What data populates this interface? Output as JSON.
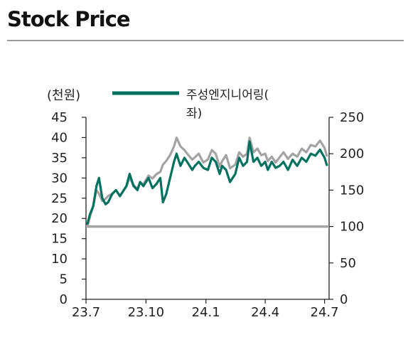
{
  "header": {
    "title": "Stock Price"
  },
  "chart_data": {
    "type": "line",
    "title": "Stock Price",
    "left_axis_label": "(천원)",
    "x_ticks": [
      "23.7",
      "23.10",
      "24.1",
      "24.4",
      "24.7"
    ],
    "y_left": {
      "min": 0,
      "max": 45,
      "ticks": [
        "0",
        "5",
        "10",
        "15",
        "20",
        "25",
        "30",
        "35",
        "40",
        "45"
      ]
    },
    "y_right": {
      "min": 0,
      "max": 250,
      "ticks": [
        "0",
        "50",
        "100",
        "150",
        "200",
        "250"
      ]
    },
    "legend": {
      "line1": "주성엔지니어링(",
      "line2": "좌)"
    },
    "grid": false,
    "colors": {
      "price": "#00715f",
      "relative": "#a3a3a3",
      "baseline": "#a3a3a3",
      "axis": "#222222"
    },
    "series": [
      {
        "name": "주성엔지니어링(좌)",
        "axis": "left",
        "x": [
          "2023-07-03",
          "2023-07-07",
          "2023-07-12",
          "2023-07-17",
          "2023-07-21",
          "2023-07-26",
          "2023-07-31",
          "2023-08-04",
          "2023-08-10",
          "2023-08-16",
          "2023-08-22",
          "2023-08-28",
          "2023-09-01",
          "2023-09-06",
          "2023-09-12",
          "2023-09-18",
          "2023-09-22",
          "2023-09-27",
          "2023-10-05",
          "2023-10-11",
          "2023-10-17",
          "2023-10-23",
          "2023-10-27",
          "2023-11-01",
          "2023-11-07",
          "2023-11-13",
          "2023-11-17",
          "2023-11-23",
          "2023-11-29",
          "2023-12-05",
          "2023-12-11",
          "2023-12-15",
          "2023-12-21",
          "2023-12-28",
          "2024-01-04",
          "2024-01-10",
          "2024-01-16",
          "2024-01-22",
          "2024-01-26",
          "2024-02-01",
          "2024-02-07",
          "2024-02-15",
          "2024-02-21",
          "2024-02-27",
          "2024-03-04",
          "2024-03-08",
          "2024-03-14",
          "2024-03-20",
          "2024-03-26",
          "2024-04-01",
          "2024-04-05",
          "2024-04-11",
          "2024-04-17",
          "2024-04-23",
          "2024-04-29",
          "2024-05-06",
          "2024-05-13",
          "2024-05-20",
          "2024-05-27",
          "2024-06-03",
          "2024-06-10",
          "2024-06-17",
          "2024-06-24",
          "2024-07-01",
          "2024-07-05"
        ],
        "values": [
          18.5,
          21,
          23,
          28,
          30,
          25,
          23.5,
          24,
          26,
          27,
          25.5,
          27,
          28,
          31,
          28,
          27,
          29,
          28,
          30,
          27.5,
          28.5,
          30,
          24,
          26,
          30,
          34,
          36,
          33,
          35,
          33.5,
          32,
          33,
          34,
          32.5,
          32,
          35,
          34,
          31,
          33,
          32,
          29,
          31,
          35,
          33,
          34,
          39,
          34,
          35,
          33,
          34,
          32,
          34,
          32.5,
          33,
          34,
          32,
          34.5,
          33,
          35,
          34,
          36,
          35.5,
          37,
          35,
          33
        ]
      },
      {
        "name": "",
        "axis": "right",
        "x": [
          "2023-07-03",
          "2023-07-07",
          "2023-07-12",
          "2023-07-17",
          "2023-07-21",
          "2023-07-26",
          "2023-07-31",
          "2023-08-04",
          "2023-08-10",
          "2023-08-16",
          "2023-08-22",
          "2023-08-28",
          "2023-09-01",
          "2023-09-06",
          "2023-09-12",
          "2023-09-18",
          "2023-09-22",
          "2023-09-27",
          "2023-10-05",
          "2023-10-11",
          "2023-10-17",
          "2023-10-23",
          "2023-10-27",
          "2023-11-01",
          "2023-11-07",
          "2023-11-13",
          "2023-11-17",
          "2023-11-23",
          "2023-11-29",
          "2023-12-05",
          "2023-12-11",
          "2023-12-15",
          "2023-12-21",
          "2023-12-28",
          "2024-01-04",
          "2024-01-10",
          "2024-01-16",
          "2024-01-22",
          "2024-01-26",
          "2024-02-01",
          "2024-02-07",
          "2024-02-15",
          "2024-02-21",
          "2024-02-27",
          "2024-03-04",
          "2024-03-08",
          "2024-03-14",
          "2024-03-20",
          "2024-03-26",
          "2024-04-01",
          "2024-04-05",
          "2024-04-11",
          "2024-04-17",
          "2024-04-23",
          "2024-04-29",
          "2024-05-06",
          "2024-05-13",
          "2024-05-20",
          "2024-05-27",
          "2024-06-03",
          "2024-06-10",
          "2024-06-17",
          "2024-06-24",
          "2024-07-01",
          "2024-07-05"
        ],
        "values": [
          100,
          113,
          128,
          150,
          145,
          135,
          138,
          142,
          145,
          150,
          142,
          150,
          155,
          167,
          157,
          152,
          160,
          158,
          170,
          166,
          172,
          175,
          185,
          190,
          198,
          210,
          222,
          210,
          205,
          198,
          192,
          195,
          200,
          188,
          192,
          205,
          200,
          182,
          190,
          198,
          180,
          185,
          202,
          196,
          200,
          222,
          202,
          207,
          198,
          200,
          190,
          196,
          188,
          195,
          202,
          193,
          200,
          196,
          207,
          202,
          212,
          210,
          218,
          208,
          196
        ]
      }
    ],
    "baseline": {
      "axis": "right",
      "value": 100
    }
  }
}
